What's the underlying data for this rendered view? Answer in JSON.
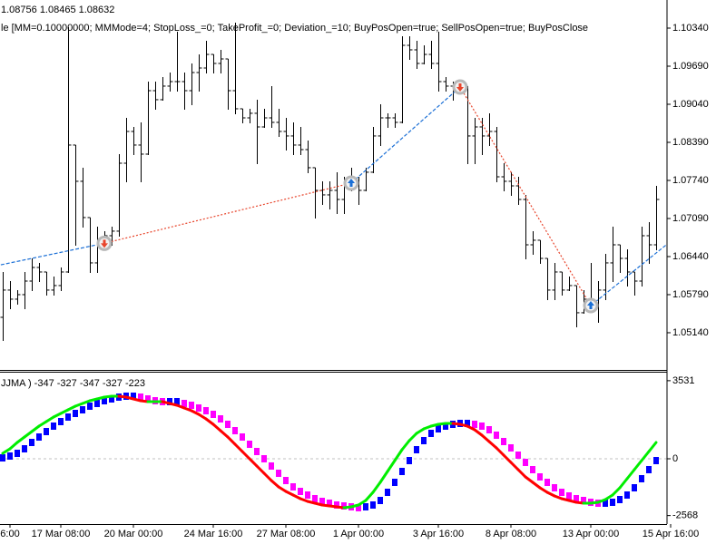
{
  "chart_data": [
    {
      "type": "ohlc",
      "header": [
        "1.08756 1.08465 1.08632",
        "le [MM=0.10000000; MMMode=4; StopLoss_=0; TakeProfit_=0; Deviation_=10; BuyPosOpen=true; SellPosOpen=true; BuyPosClose"
      ],
      "color": "#000000",
      "xlim": [
        0,
        90
      ],
      "ylim": [
        1.04505,
        1.1082
      ],
      "yticks": [
        {
          "value": 1.1034,
          "label": "1.10340"
        },
        {
          "value": 1.0969,
          "label": "1.09690"
        },
        {
          "value": 1.0904,
          "label": "1.09040"
        },
        {
          "value": 1.0839,
          "label": "1.08390"
        },
        {
          "value": 1.0774,
          "label": "1.07740"
        },
        {
          "value": 1.0709,
          "label": "1.07090"
        },
        {
          "value": 1.0644,
          "label": "1.06440"
        },
        {
          "value": 1.0579,
          "label": "1.05790"
        },
        {
          "value": 1.0514,
          "label": "1.05140"
        }
      ],
      "open": [
        1.05403,
        1.05868,
        1.05713,
        1.0579,
        1.06022,
        1.06254,
        1.06177,
        1.05868,
        1.05945,
        1.06177,
        1.08344,
        1.07725,
        1.07106,
        1.06332,
        1.06719,
        1.06796,
        1.06874,
        1.08034,
        1.08576,
        1.08344,
        1.08189,
        1.09272,
        1.09118,
        1.0935,
        1.09427,
        1.09427,
        1.09272,
        1.09582,
        1.09659,
        1.09891,
        1.09737,
        1.09814,
        1.09272,
        1.08963,
        1.08808,
        1.08886,
        1.08653,
        1.08808,
        1.08731,
        1.08576,
        1.08499,
        1.08344,
        1.08266,
        1.07957,
        1.0757,
        1.07493,
        1.0757,
        1.07415,
        1.07725,
        1.07647,
        1.0757,
        1.0788,
        1.08499,
        1.08808,
        1.08808,
        1.08731,
        1.10046,
        1.09969,
        1.09737,
        1.09891,
        1.09737,
        1.09427,
        1.0935,
        1.09272,
        1.0935,
        1.08499,
        1.08653,
        1.08499,
        1.08576,
        1.07802,
        1.07725,
        1.07647,
        1.07415,
        1.06641,
        1.06719,
        1.06409,
        1.05868,
        1.06177,
        1.05868,
        1.05945,
        1.05481,
        1.05713,
        1.05635,
        1.05868,
        1.06332,
        1.06641,
        1.06409,
        1.06177,
        1.06022,
        1.06796,
        1.06641
      ],
      "high": [
        1.06177,
        1.06022,
        1.05868,
        1.06177,
        1.06409,
        1.06332,
        1.06177,
        1.061,
        1.06254,
        1.10356,
        1.08344,
        1.07957,
        1.07106,
        1.06951,
        1.06874,
        1.06951,
        1.08189,
        1.08808,
        1.08653,
        1.08731,
        1.09427,
        1.09427,
        1.09505,
        1.09582,
        1.10278,
        1.09582,
        1.09737,
        1.09891,
        1.10124,
        1.09891,
        1.09969,
        1.09814,
        1.10433,
        1.08963,
        1.08963,
        1.09118,
        1.08963,
        1.0935,
        1.08963,
        1.08808,
        1.08731,
        1.08653,
        1.08421,
        1.07957,
        1.07725,
        1.07725,
        1.0788,
        1.07802,
        1.07957,
        1.07802,
        1.07957,
        1.08653,
        1.0904,
        1.08886,
        1.08886,
        1.10201,
        1.10201,
        1.10124,
        1.10046,
        1.10124,
        1.10278,
        1.09505,
        1.09427,
        1.09427,
        1.0935,
        1.08808,
        1.08808,
        1.08886,
        1.08653,
        1.08034,
        1.0788,
        1.07802,
        1.07493,
        1.06874,
        1.06719,
        1.06409,
        1.06332,
        1.06177,
        1.061,
        1.05945,
        1.05868,
        1.06332,
        1.06022,
        1.06487,
        1.06951,
        1.06641,
        1.06564,
        1.06177,
        1.06951,
        1.07028,
        1.07647
      ],
      "low": [
        1.05016,
        1.05558,
        1.05635,
        1.05558,
        1.05868,
        1.06022,
        1.0579,
        1.0579,
        1.05868,
        1.06177,
        1.06641,
        1.06951,
        1.06177,
        1.06177,
        1.06564,
        1.06641,
        1.06796,
        1.07725,
        1.08189,
        1.07725,
        1.08189,
        1.08963,
        1.09118,
        1.09272,
        1.09272,
        1.08963,
        1.0904,
        1.09272,
        1.09582,
        1.09582,
        1.09582,
        1.08963,
        1.08886,
        1.08731,
        1.08731,
        1.08034,
        1.08653,
        1.08653,
        1.08499,
        1.08266,
        1.08189,
        1.08189,
        1.0788,
        1.07106,
        1.07338,
        1.0726,
        1.07183,
        1.07183,
        1.0757,
        1.07338,
        1.0757,
        1.0788,
        1.08344,
        1.08653,
        1.08653,
        1.08731,
        1.09814,
        1.09659,
        1.09737,
        1.09659,
        1.09272,
        1.09272,
        1.09118,
        1.09272,
        1.08034,
        1.08034,
        1.08189,
        1.08344,
        1.07725,
        1.0757,
        1.07493,
        1.07338,
        1.06409,
        1.06487,
        1.06332,
        1.05713,
        1.05713,
        1.0579,
        1.05868,
        1.05248,
        1.05481,
        1.05558,
        1.05326,
        1.05713,
        1.06022,
        1.06177,
        1.05945,
        1.0579,
        1.05945,
        1.06332,
        1.06564
      ],
      "close": [
        1.05868,
        1.05713,
        1.0579,
        1.06022,
        1.06254,
        1.06177,
        1.05868,
        1.05945,
        1.06177,
        1.08344,
        1.07725,
        1.07106,
        1.06332,
        1.06719,
        1.06796,
        1.06874,
        1.08034,
        1.08576,
        1.08344,
        1.08189,
        1.09272,
        1.09118,
        1.0935,
        1.09427,
        1.09427,
        1.09272,
        1.09582,
        1.09659,
        1.09891,
        1.09737,
        1.09814,
        1.09272,
        1.08963,
        1.08808,
        1.08886,
        1.08653,
        1.08808,
        1.08731,
        1.08576,
        1.08499,
        1.08344,
        1.08266,
        1.07957,
        1.0757,
        1.07493,
        1.0757,
        1.07415,
        1.07725,
        1.07647,
        1.0757,
        1.0788,
        1.08499,
        1.08808,
        1.08808,
        1.08731,
        1.10046,
        1.09969,
        1.09737,
        1.09891,
        1.09737,
        1.09427,
        1.0935,
        1.09272,
        1.0935,
        1.08499,
        1.08653,
        1.08499,
        1.08576,
        1.07802,
        1.07725,
        1.07647,
        1.07415,
        1.06641,
        1.06719,
        1.06409,
        1.05868,
        1.06177,
        1.05868,
        1.05945,
        1.05481,
        1.05713,
        1.05635,
        1.05868,
        1.06332,
        1.06641,
        1.06409,
        1.06177,
        1.06022,
        1.06796,
        1.06641,
        1.07415
      ],
      "trades": {
        "x": [
          -1,
          14,
          48,
          63,
          81,
          92
        ],
        "price": [
          1.0628,
          1.06667,
          1.07694,
          1.09334,
          1.05604,
          1.067
        ],
        "side": [
          "buy",
          "sell",
          "buy",
          "sell",
          "buy",
          "sell"
        ]
      },
      "buy_color": "#1a6fd6",
      "sell_color": "#e8452c"
    },
    {
      "type": "indicator",
      "label": "JJMA ) -347 -327 -347 -327 -223",
      "xlim": [
        0,
        90
      ],
      "ylim": [
        -2952,
        3936
      ],
      "yticks": [
        3531,
        0,
        -2568
      ],
      "level_lines": [
        0
      ],
      "xticks": [
        {
          "value": 1,
          "label": "6:00"
        },
        {
          "value": 8,
          "label": "17 Mar 08:00"
        },
        {
          "value": 18,
          "label": "20 Mar 00:00"
        },
        {
          "value": 29,
          "label": "24 Mar 16:00"
        },
        {
          "value": 39,
          "label": "27 Mar 08:00"
        },
        {
          "value": 49,
          "label": "1 Apr 00:00"
        },
        {
          "value": 60,
          "label": "3 Apr 16:00"
        },
        {
          "value": 70,
          "label": "8 Apr 08:00"
        },
        {
          "value": 81,
          "label": "13 Apr 00:00"
        },
        {
          "value": 92,
          "label": "15 Apr 16:00"
        }
      ],
      "line": [
        246,
        451,
        738,
        984,
        1230,
        1476,
        1681,
        1886,
        2050,
        2214,
        2378,
        2501,
        2624,
        2706,
        2788,
        2829,
        2829,
        2788,
        2706,
        2624,
        2583,
        2583,
        2583,
        2501,
        2419,
        2296,
        2173,
        2009,
        1804,
        1558,
        1271,
        984,
        656,
        328,
        0,
        -328,
        -656,
        -984,
        -1271,
        -1476,
        -1640,
        -1804,
        -1927,
        -2009,
        -2091,
        -2132,
        -2173,
        -2214,
        -2173,
        -2091,
        -1886,
        -1517,
        -1066,
        -574,
        -82,
        410,
        820,
        1148,
        1353,
        1476,
        1558,
        1599,
        1599,
        1558,
        1476,
        1312,
        1066,
        779,
        492,
        164,
        -164,
        -492,
        -820,
        -1066,
        -1312,
        -1517,
        -1681,
        -1804,
        -1886,
        -1968,
        -2009,
        -2009,
        -1968,
        -1845,
        -1640,
        -1312,
        -902,
        -492,
        -82,
        328,
        738
      ],
      "histogram": [
        41,
        123,
        246,
        451,
        738,
        984,
        1230,
        1476,
        1681,
        1886,
        2050,
        2214,
        2378,
        2501,
        2624,
        2706,
        2788,
        2829,
        2829,
        2788,
        2706,
        2624,
        2583,
        2583,
        2583,
        2501,
        2419,
        2296,
        2173,
        2009,
        1804,
        1558,
        1271,
        984,
        656,
        328,
        0,
        -328,
        -656,
        -984,
        -1271,
        -1476,
        -1640,
        -1804,
        -1927,
        -2009,
        -2091,
        -2132,
        -2173,
        -2214,
        -2173,
        -2091,
        -1886,
        -1517,
        -1066,
        -574,
        -82,
        410,
        820,
        1148,
        1353,
        1476,
        1558,
        1599,
        1599,
        1558,
        1476,
        1312,
        1066,
        779,
        492,
        164,
        -164,
        -492,
        -820,
        -1066,
        -1312,
        -1517,
        -1681,
        -1804,
        -1886,
        -1968,
        -2009,
        -2009,
        -1968,
        -1845,
        -1640,
        -1312,
        -902,
        -492,
        -82
      ],
      "up_color": "#00ee00",
      "down_color": "#ff0000",
      "hist_up_color": "#0000ff",
      "hist_down_color": "#ff00ff"
    }
  ]
}
